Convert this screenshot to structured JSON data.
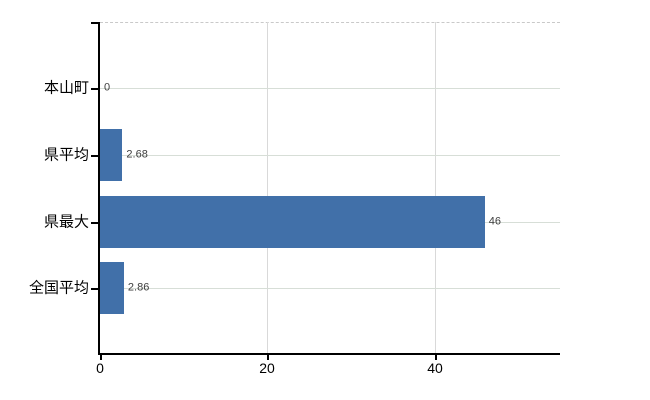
{
  "chart_data": {
    "type": "bar",
    "orientation": "horizontal",
    "title": "",
    "categories": [
      "本山町",
      "県平均",
      "県最大",
      "全国平均"
    ],
    "values": [
      0,
      2.68,
      46,
      2.86
    ],
    "value_labels": [
      "0",
      "2.68",
      "46",
      "2.86"
    ],
    "x_ticks": [
      0,
      20,
      40
    ],
    "x_tick_labels": [
      "0",
      "20",
      "40"
    ],
    "xlim": [
      0,
      55
    ],
    "xlabel": "",
    "ylabel": "",
    "grid": true,
    "legend": false,
    "colors": {
      "bar": "#4170A9",
      "grid_horizontal": "#d7ded7",
      "grid_vertical": "#d9d9d9",
      "top_border_dashed": "#c9c9c9",
      "axis": "#000000",
      "category_label": "#000000",
      "value_label": "#3d3d3d",
      "tick_label": "#000000",
      "background": "#ffffff"
    }
  }
}
